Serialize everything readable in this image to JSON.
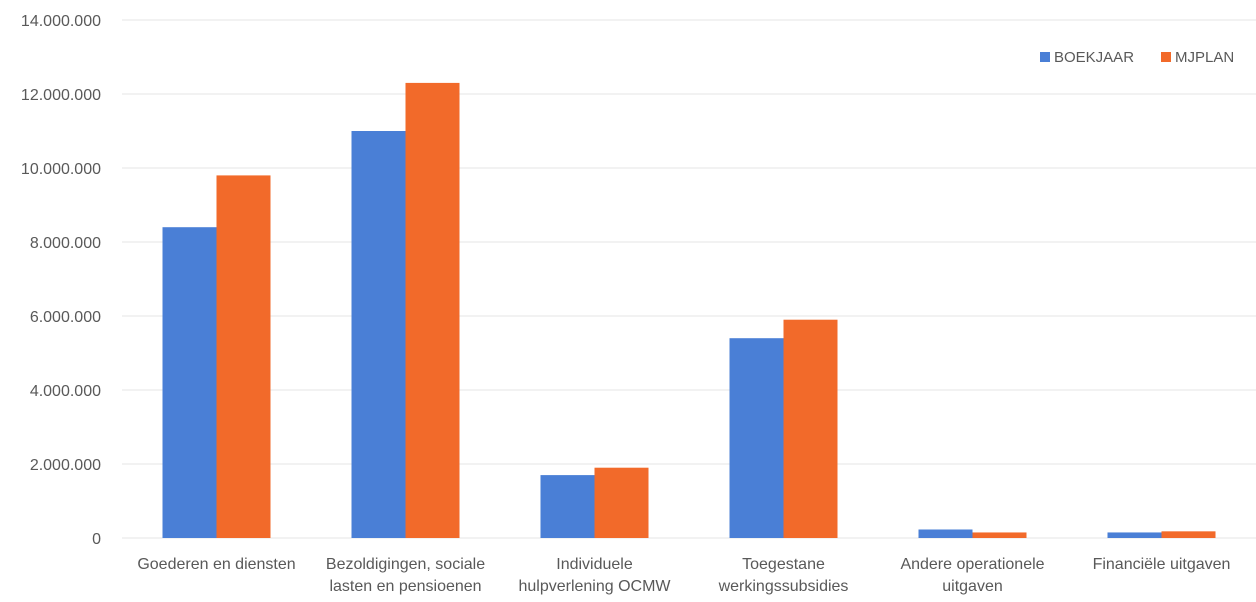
{
  "chart_data": {
    "type": "bar",
    "categories": [
      [
        "Goederen en diensten"
      ],
      [
        "Bezoldigingen, sociale",
        "lasten en pensioenen"
      ],
      [
        "Individuele",
        "hulpverlening OCMW"
      ],
      [
        "Toegestane",
        "werkingssubsidies"
      ],
      [
        "Andere operationele",
        "uitgaven"
      ],
      [
        "Financiële uitgaven"
      ]
    ],
    "series": [
      {
        "name": "BOEKJAAR",
        "color": "#4a7fd6",
        "values": [
          8400000,
          11000000,
          1700000,
          5400000,
          230000,
          150000
        ]
      },
      {
        "name": "MJPLAN",
        "color": "#f26a2a",
        "values": [
          9800000,
          12300000,
          1900000,
          5900000,
          150000,
          180000
        ]
      }
    ],
    "ylim": [
      0,
      14000000
    ],
    "y_ticks": [
      {
        "value": 0,
        "label": "0"
      },
      {
        "value": 2000000,
        "label": "2.000.000"
      },
      {
        "value": 4000000,
        "label": "4.000.000"
      },
      {
        "value": 6000000,
        "label": "6.000.000"
      },
      {
        "value": 8000000,
        "label": "8.000.000"
      },
      {
        "value": 10000000,
        "label": "10.000.000"
      },
      {
        "value": 12000000,
        "label": "12.000.000"
      },
      {
        "value": 14000000,
        "label": "14.000.000"
      }
    ],
    "legend_position": "top-right",
    "grid": true
  }
}
